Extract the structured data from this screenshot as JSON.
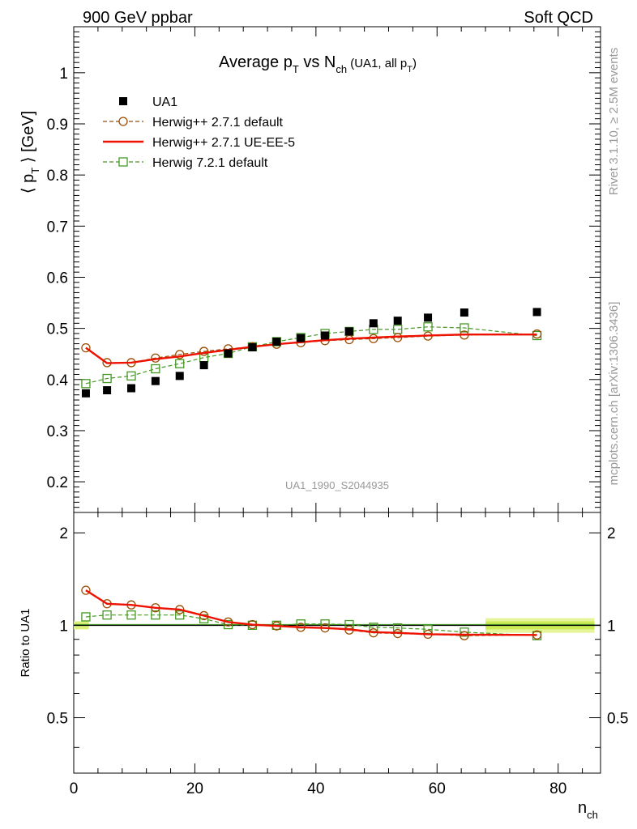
{
  "header": {
    "left": "900 GeV ppbar",
    "right": "Soft QCD"
  },
  "side_labels": {
    "rivet": "Rivet 3.1.10, ≥ 2.5M events",
    "mcplots": "mcplots.cern.ch [arXiv:1306.3436]"
  },
  "watermark": "UA1_1990_S2044935",
  "title": {
    "main": "Average p",
    "main_sub": "T",
    "vs": " vs N",
    "vs_sub": "ch",
    "paren": " (UA1, all p",
    "paren_sub": "T",
    "paren_close": ")"
  },
  "chart_data": {
    "type": "scatter",
    "xlabel": "n",
    "xlabel_sub": "ch",
    "ylabel_main": "⟨ p",
    "ylabel_sub": "T",
    "ylabel_end": " ⟩ [GeV]",
    "ratio_ylabel": "Ratio to UA1",
    "xlim": [
      0,
      87
    ],
    "ylim": [
      0.14,
      1.09
    ],
    "ratio_ylim": [
      0.33,
      2.33
    ],
    "ratio_scale": "log",
    "x_ticks": [
      "0",
      "20",
      "40",
      "60",
      "80"
    ],
    "y_ticks": [
      "0.2",
      "0.3",
      "0.4",
      "0.5",
      "0.6",
      "0.7",
      "0.8",
      "0.9",
      "1"
    ],
    "ratio_y_ticks": [
      "0.5",
      "1",
      "2"
    ],
    "legend_position": "top-left",
    "series": [
      {
        "name": "UA1",
        "style": "data",
        "color": "#000000",
        "x": [
          2,
          5.5,
          9.5,
          13.5,
          17.5,
          21.5,
          25.5,
          29.5,
          33.5,
          37.5,
          41.5,
          45.5,
          49.5,
          53.5,
          58.5,
          64.5,
          76.5
        ],
        "values": [
          0.373,
          0.379,
          0.383,
          0.397,
          0.407,
          0.428,
          0.451,
          0.463,
          0.474,
          0.481,
          0.486,
          0.494,
          0.51,
          0.515,
          0.521,
          0.531,
          0.532
        ],
        "ratio": [
          1,
          1,
          1,
          1,
          1,
          1,
          1,
          1,
          1,
          1,
          1,
          1,
          1,
          1,
          1,
          1,
          1
        ]
      },
      {
        "name": "Herwig++ 2.7.1 default",
        "style": "circle-dashed",
        "color": "#9a4c00",
        "x": [
          2,
          5.5,
          9.5,
          13.5,
          17.5,
          21.5,
          25.5,
          29.5,
          33.5,
          37.5,
          41.5,
          45.5,
          49.5,
          53.5,
          58.5,
          64.5,
          76.5
        ],
        "values": [
          0.462,
          0.433,
          0.433,
          0.442,
          0.449,
          0.455,
          0.46,
          0.464,
          0.469,
          0.472,
          0.476,
          0.478,
          0.48,
          0.482,
          0.485,
          0.487,
          0.489
        ],
        "ratio": [
          1.3,
          1.175,
          1.165,
          1.14,
          1.125,
          1.075,
          1.025,
          1.005,
          0.995,
          0.985,
          0.98,
          0.965,
          0.945,
          0.94,
          0.935,
          0.925,
          0.93
        ]
      },
      {
        "name": "Herwig++ 2.7.1 UE-EE-5",
        "style": "solid",
        "color": "#ee1100",
        "x": [
          2,
          5.5,
          9.5,
          13.5,
          17.5,
          21.5,
          25.5,
          29.5,
          33.5,
          37.5,
          41.5,
          45.5,
          49.5,
          53.5,
          58.5,
          64.5,
          76.5
        ],
        "values": [
          0.462,
          0.432,
          0.433,
          0.44,
          0.445,
          0.452,
          0.458,
          0.464,
          0.469,
          0.473,
          0.477,
          0.48,
          0.482,
          0.484,
          0.486,
          0.488,
          0.488
        ],
        "ratio": [
          1.3,
          1.175,
          1.165,
          1.14,
          1.125,
          1.075,
          1.025,
          1.005,
          0.995,
          0.985,
          0.98,
          0.97,
          0.95,
          0.945,
          0.935,
          0.932,
          0.93
        ]
      },
      {
        "name": "Herwig 7.2.1 default",
        "style": "square-dashed",
        "color": "#449922",
        "x": [
          2,
          5.5,
          9.5,
          13.5,
          17.5,
          21.5,
          25.5,
          29.5,
          33.5,
          37.5,
          41.5,
          45.5,
          49.5,
          53.5,
          58.5,
          64.5,
          76.5
        ],
        "values": [
          0.392,
          0.402,
          0.407,
          0.421,
          0.431,
          0.443,
          0.451,
          0.464,
          0.474,
          0.482,
          0.49,
          0.494,
          0.498,
          0.498,
          0.503,
          0.501,
          0.486
        ],
        "ratio": [
          1.065,
          1.08,
          1.08,
          1.08,
          1.08,
          1.05,
          1.005,
          1.0,
          1.0,
          1.01,
          1.01,
          1.005,
          0.985,
          0.98,
          0.97,
          0.95,
          0.925
        ]
      }
    ]
  }
}
